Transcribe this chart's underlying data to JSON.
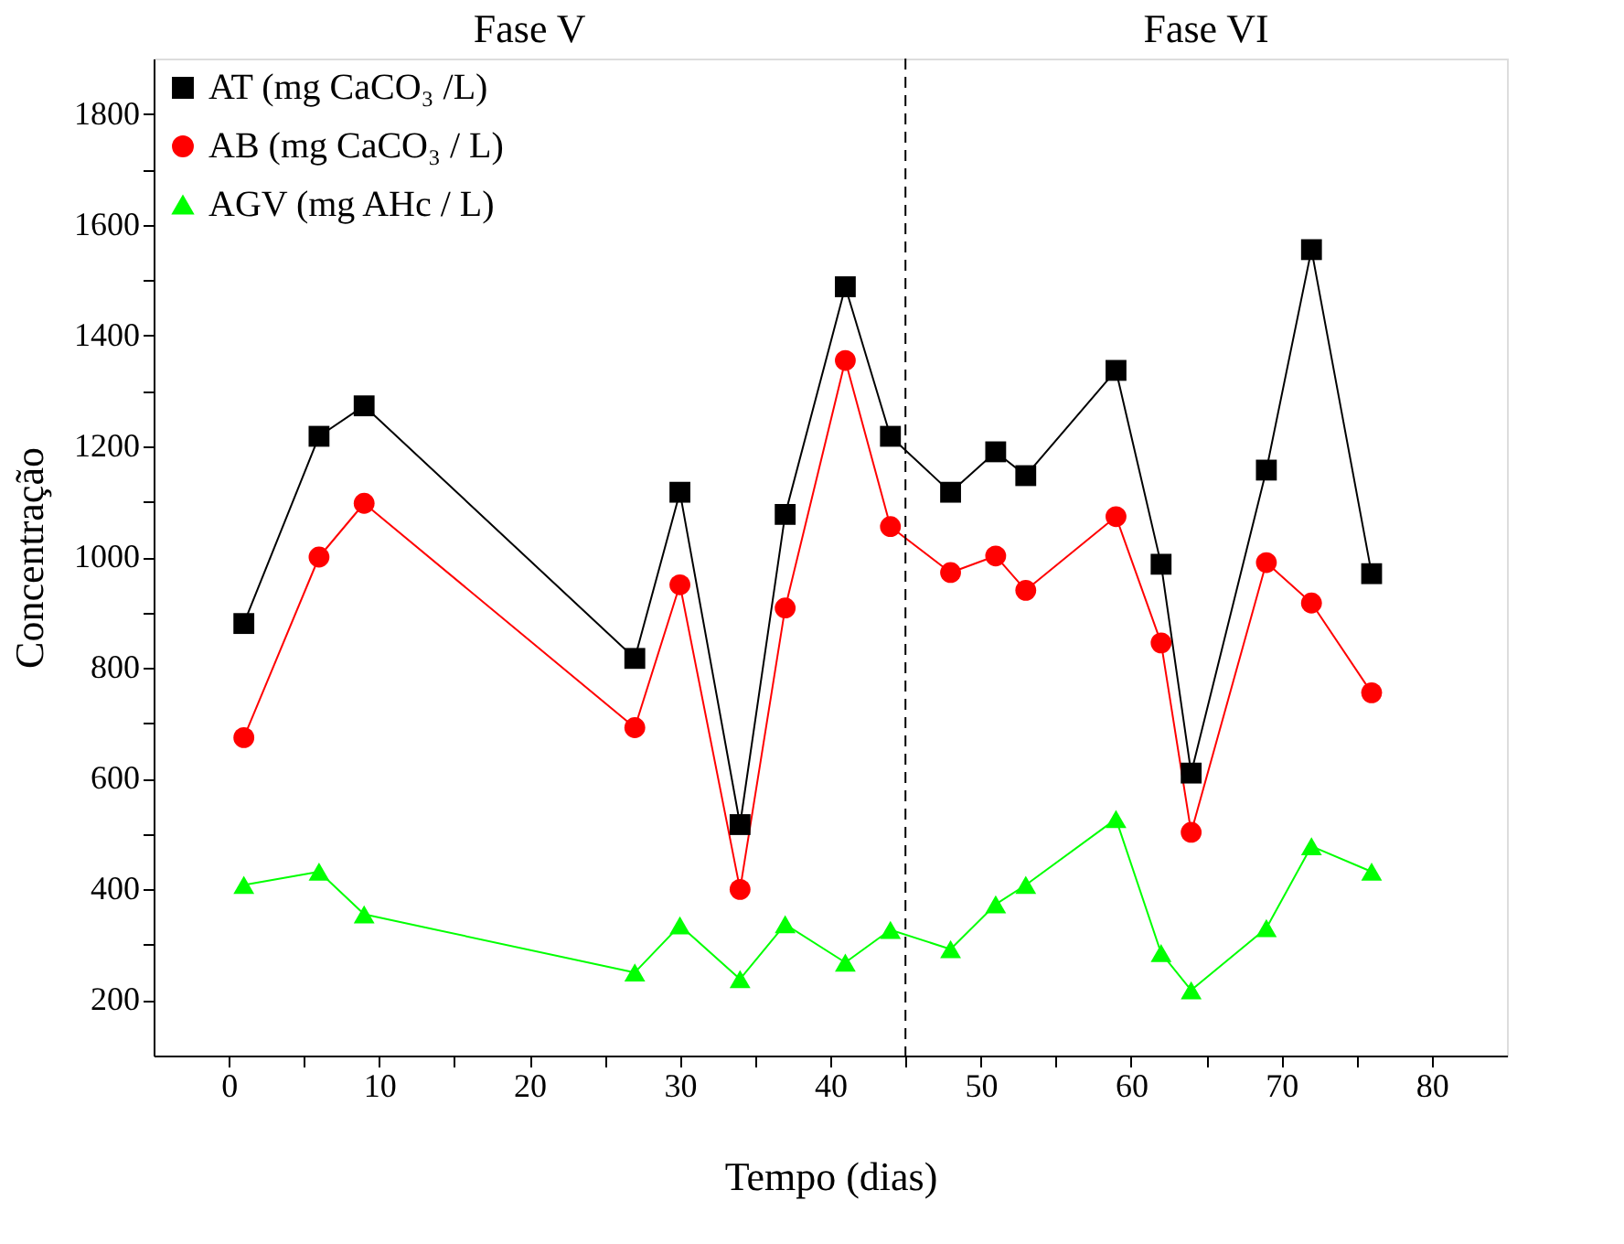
{
  "chart_data": {
    "type": "line",
    "xlabel": "Tempo (dias)",
    "ylabel": "Concentração",
    "x": [
      1,
      6,
      9,
      27,
      30,
      34,
      37,
      41,
      44,
      48,
      51,
      53,
      59,
      62,
      64,
      69,
      72,
      76
    ],
    "series": [
      {
        "name": "AT (mg CaCO₃ /L)",
        "color": "#000000",
        "marker": "square",
        "values": [
          880,
          1218,
          1273,
          817,
          1117,
          517,
          1077,
          1488,
          1218,
          1117,
          1190,
          1147,
          1337,
          987,
          610,
          1157,
          1555,
          970
        ]
      },
      {
        "name": "AB (mg CaCO₃ / L)",
        "color": "#ff0000",
        "marker": "circle",
        "values": [
          674,
          1000,
          1097,
          692,
          950,
          400,
          908,
          1355,
          1055,
          972,
          1002,
          940,
          1073,
          845,
          503,
          990,
          917,
          755
        ]
      },
      {
        "name": "AGV (mg AHc / L)",
        "color": "#00ff00",
        "marker": "triangle",
        "values": [
          408,
          432,
          355,
          250,
          335,
          238,
          337,
          268,
          327,
          292,
          373,
          408,
          527,
          285,
          218,
          330,
          478,
          432
        ]
      }
    ],
    "xlim": [
      -5,
      85
    ],
    "ylim": [
      100,
      1900
    ],
    "xticks": [
      0,
      {
        "value": 5,
        "label": null
      },
      10,
      {
        "value": 15,
        "label": null
      },
      20,
      {
        "value": 25,
        "label": null
      },
      30,
      {
        "value": 35,
        "label": null
      },
      40,
      {
        "value": 45,
        "label": null
      },
      50,
      {
        "value": 55,
        "label": null
      },
      60,
      {
        "value": 65,
        "label": null
      },
      70,
      {
        "value": 75,
        "label": null
      },
      80
    ],
    "yticks": [
      200,
      {
        "value": 300,
        "label": null
      },
      400,
      {
        "value": 500,
        "label": null
      },
      600,
      {
        "value": 700,
        "label": null
      },
      800,
      {
        "value": 900,
        "label": null
      },
      1000,
      {
        "value": 1100,
        "label": null
      },
      1200,
      {
        "value": 1300,
        "label": null
      },
      1400,
      {
        "value": 1500,
        "label": null
      },
      1600,
      {
        "value": 1700,
        "label": null
      },
      1800
    ],
    "ref_lines": [
      {
        "axis": "x",
        "value": 45,
        "color": "#000000",
        "line_style": "dashed"
      }
    ],
    "annotations": [
      "Fase V",
      "Fase VI"
    ],
    "legend": "top left",
    "grid": false,
    "line_style": "solid"
  }
}
